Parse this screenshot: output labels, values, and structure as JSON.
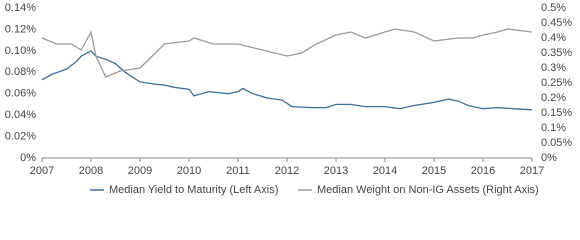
{
  "chart_data": {
    "type": "line",
    "xlim": [
      2007,
      2017
    ],
    "xticks": [
      2007,
      2008,
      2009,
      2010,
      2011,
      2012,
      2013,
      2014,
      2015,
      2016,
      2017
    ],
    "ylim": [
      0,
      0.14
    ],
    "yticks": [
      {
        "value": 0,
        "label": "0%"
      },
      {
        "value": 0.02,
        "label": "0.02%"
      },
      {
        "value": 0.04,
        "label": "0.04%"
      },
      {
        "value": 0.06,
        "label": "0.06%"
      },
      {
        "value": 0.08,
        "label": "0.08%"
      },
      {
        "value": 0.1,
        "label": "0.10%"
      },
      {
        "value": 0.12,
        "label": "0.12%"
      },
      {
        "value": 0.14,
        "label": "0.14%"
      }
    ],
    "y2lim": [
      0,
      0.5
    ],
    "y2ticks": [
      {
        "value": 0,
        "label": "0%"
      },
      {
        "value": 0.05,
        "label": "0.05%"
      },
      {
        "value": 0.1,
        "label": "0.1%"
      },
      {
        "value": 0.15,
        "label": "0.15%"
      },
      {
        "value": 0.2,
        "label": "0.2%"
      },
      {
        "value": 0.25,
        "label": "0.25%"
      },
      {
        "value": 0.3,
        "label": "0.3%"
      },
      {
        "value": 0.35,
        "label": "0.35%"
      },
      {
        "value": 0.4,
        "label": "0.4%"
      },
      {
        "value": 0.45,
        "label": "0.45%"
      },
      {
        "value": 0.5,
        "label": "0.5%"
      }
    ],
    "grid": false,
    "series": [
      {
        "name": "Median Yield to Maturity (Left Axis)",
        "color": "#3d6e9b",
        "x": [
          2007,
          2007.2,
          2007.5,
          2007.7,
          2007.8,
          2008.0,
          2008.1,
          2008.3,
          2008.5,
          2008.7,
          2009.0,
          2009.3,
          2009.5,
          2009.7,
          2010.0,
          2010.1,
          2010.4,
          2010.6,
          2010.8,
          2011.0,
          2011.1,
          2011.3,
          2011.6,
          2011.9,
          2012.1,
          2012.5,
          2012.8,
          2013.0,
          2013.3,
          2013.6,
          2014.0,
          2014.3,
          2014.6,
          2015.0,
          2015.3,
          2015.5,
          2015.7,
          2016.0,
          2016.3,
          2016.6,
          2017.0
        ],
        "values": [
          0.073,
          0.078,
          0.083,
          0.09,
          0.095,
          0.1,
          0.095,
          0.092,
          0.088,
          0.08,
          0.071,
          0.069,
          0.068,
          0.066,
          0.064,
          0.058,
          0.062,
          0.061,
          0.06,
          0.062,
          0.065,
          0.06,
          0.056,
          0.054,
          0.048,
          0.047,
          0.047,
          0.05,
          0.05,
          0.048,
          0.048,
          0.046,
          0.049,
          0.052,
          0.055,
          0.053,
          0.049,
          0.046,
          0.047,
          0.046,
          0.045
        ]
      },
      {
        "name": "Median Weight on Non-IG Assets (Right Axis)",
        "color": "#9a9a9a",
        "axis": "y2",
        "x": [
          2007,
          2007.3,
          2007.6,
          2007.8,
          2008.0,
          2008.1,
          2008.3,
          2008.6,
          2009.0,
          2009.5,
          2010.0,
          2010.1,
          2010.5,
          2011.0,
          2011.5,
          2012.0,
          2012.3,
          2012.6,
          2013.0,
          2013.3,
          2013.6,
          2014.0,
          2014.2,
          2014.6,
          2015.0,
          2015.5,
          2015.8,
          2016.0,
          2016.3,
          2016.5,
          2017.0
        ],
        "values": [
          0.4,
          0.38,
          0.38,
          0.36,
          0.42,
          0.34,
          0.27,
          0.29,
          0.3,
          0.38,
          0.39,
          0.4,
          0.38,
          0.38,
          0.36,
          0.34,
          0.35,
          0.38,
          0.41,
          0.42,
          0.4,
          0.42,
          0.43,
          0.42,
          0.39,
          0.4,
          0.4,
          0.41,
          0.42,
          0.43,
          0.42
        ]
      }
    ]
  }
}
